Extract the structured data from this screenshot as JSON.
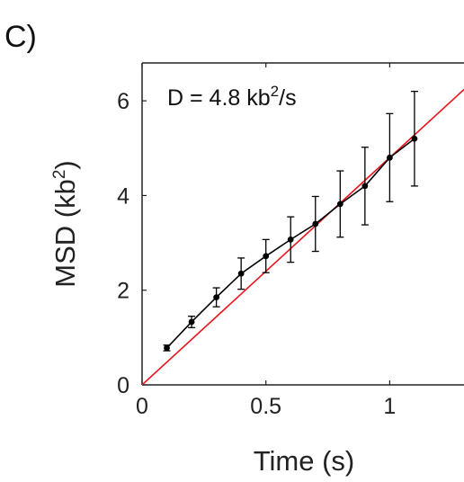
{
  "panel_label": "C)",
  "chart_data": {
    "type": "scatter",
    "xlabel": "Time (s)",
    "ylabel_main": "MSD (kb",
    "ylabel_sup": "2",
    "ylabel_end": ")",
    "xlim": [
      0,
      1.3
    ],
    "ylim": [
      0,
      6.8
    ],
    "x_ticks": [
      0,
      0.5,
      1
    ],
    "x_tick_labels": [
      "0",
      "0.5",
      "1"
    ],
    "y_ticks": [
      0,
      2,
      4,
      6
    ],
    "y_tick_labels": [
      "0",
      "2",
      "4",
      "6"
    ],
    "annotation": {
      "main": "D = 4.8 kb",
      "sup": "2",
      "end": "/s"
    },
    "series": [
      {
        "color": "#000000",
        "x": [
          0.1,
          0.2,
          0.3,
          0.4,
          0.5,
          0.6,
          0.7,
          0.8,
          0.9,
          1.0,
          1.1
        ],
        "y": [
          0.78,
          1.33,
          1.85,
          2.35,
          2.72,
          3.07,
          3.4,
          3.82,
          4.2,
          4.8,
          5.2
        ],
        "err": [
          0.06,
          0.12,
          0.2,
          0.33,
          0.35,
          0.48,
          0.58,
          0.7,
          0.82,
          0.93,
          1.0
        ]
      }
    ],
    "fit_line": {
      "color": "#e8141b",
      "slope": 4.8,
      "intercept": 0
    }
  }
}
